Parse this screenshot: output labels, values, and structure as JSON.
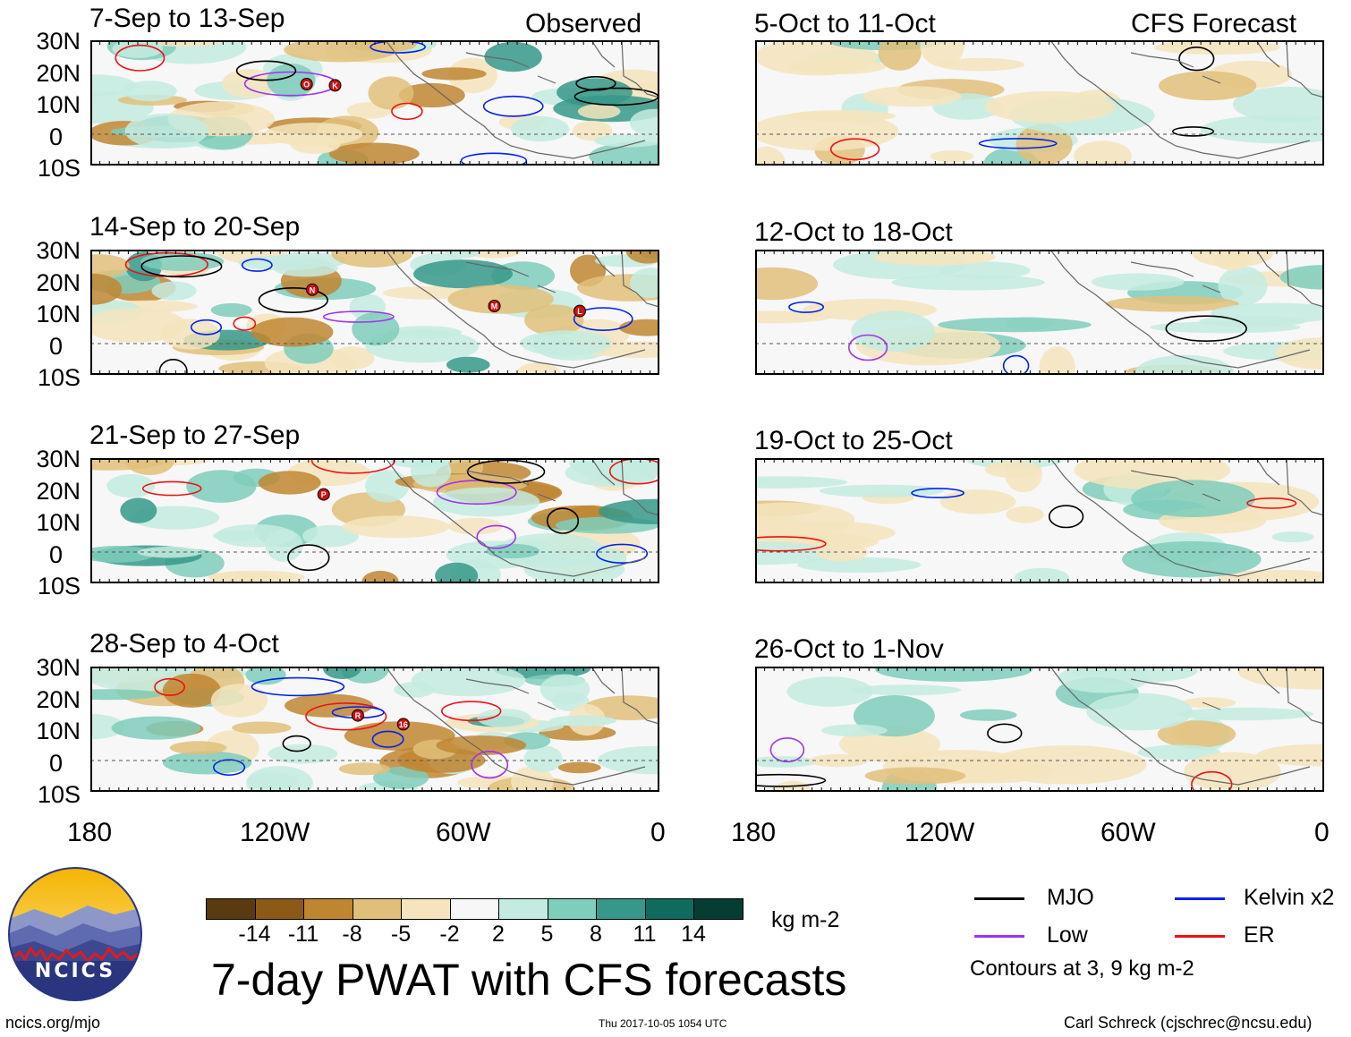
{
  "column_headers": {
    "left": "Observed",
    "right": "CFS Forecast"
  },
  "panels": [
    {
      "title": "7-Sep to 13-Sep"
    },
    {
      "title": "14-Sep to 20-Sep"
    },
    {
      "title": "21-Sep to 27-Sep"
    },
    {
      "title": "28-Sep to 4-Oct"
    },
    {
      "title": "5-Oct to 11-Oct"
    },
    {
      "title": "12-Oct to 18-Oct"
    },
    {
      "title": "19-Oct to 25-Oct"
    },
    {
      "title": "26-Oct to 1-Nov"
    }
  ],
  "lat_labels": [
    "30N",
    "20N",
    "10N",
    "0",
    "10S"
  ],
  "lon_labels": [
    "180",
    "120W",
    "60W",
    "0"
  ],
  "storm_markers": [
    {
      "panel": 0,
      "letter": "O"
    },
    {
      "panel": 0,
      "letter": "K"
    },
    {
      "panel": 1,
      "letter": "N"
    },
    {
      "panel": 1,
      "letter": "M"
    },
    {
      "panel": 1,
      "letter": "L"
    },
    {
      "panel": 2,
      "letter": "P"
    },
    {
      "panel": 3,
      "letter": "R"
    },
    {
      "panel": 3,
      "letter": "16"
    }
  ],
  "colorbar": {
    "levels": [
      "-14",
      "-11",
      "-8",
      "-5",
      "-2",
      "2",
      "5",
      "8",
      "11",
      "14"
    ],
    "colors": [
      "#5a3a10",
      "#8c5a17",
      "#bf8632",
      "#e0bf7a",
      "#f5e4bd",
      "#f7f7f7",
      "#c4ebe1",
      "#7fcdbb",
      "#36988a",
      "#0e6b5e",
      "#063d33"
    ],
    "units": "kg m-2"
  },
  "legend": {
    "items": [
      {
        "label": "MJO",
        "color": "#000000"
      },
      {
        "label": "Kelvin x2",
        "color": "#0022ee"
      },
      {
        "label": "Low",
        "color": "#a033ee"
      },
      {
        "label": "ER",
        "color": "#ee1111"
      }
    ],
    "note": "Contours at 3, 9 kg m-2"
  },
  "title": "7-day PWAT with CFS forecasts",
  "logo_text": "NCICS",
  "footer": {
    "url": "ncics.org/mjo",
    "timestamp": "Thu 2017-10-05 1054 UTC",
    "credit": "Carl Schreck (cjschrec@ncsu.edu)"
  }
}
